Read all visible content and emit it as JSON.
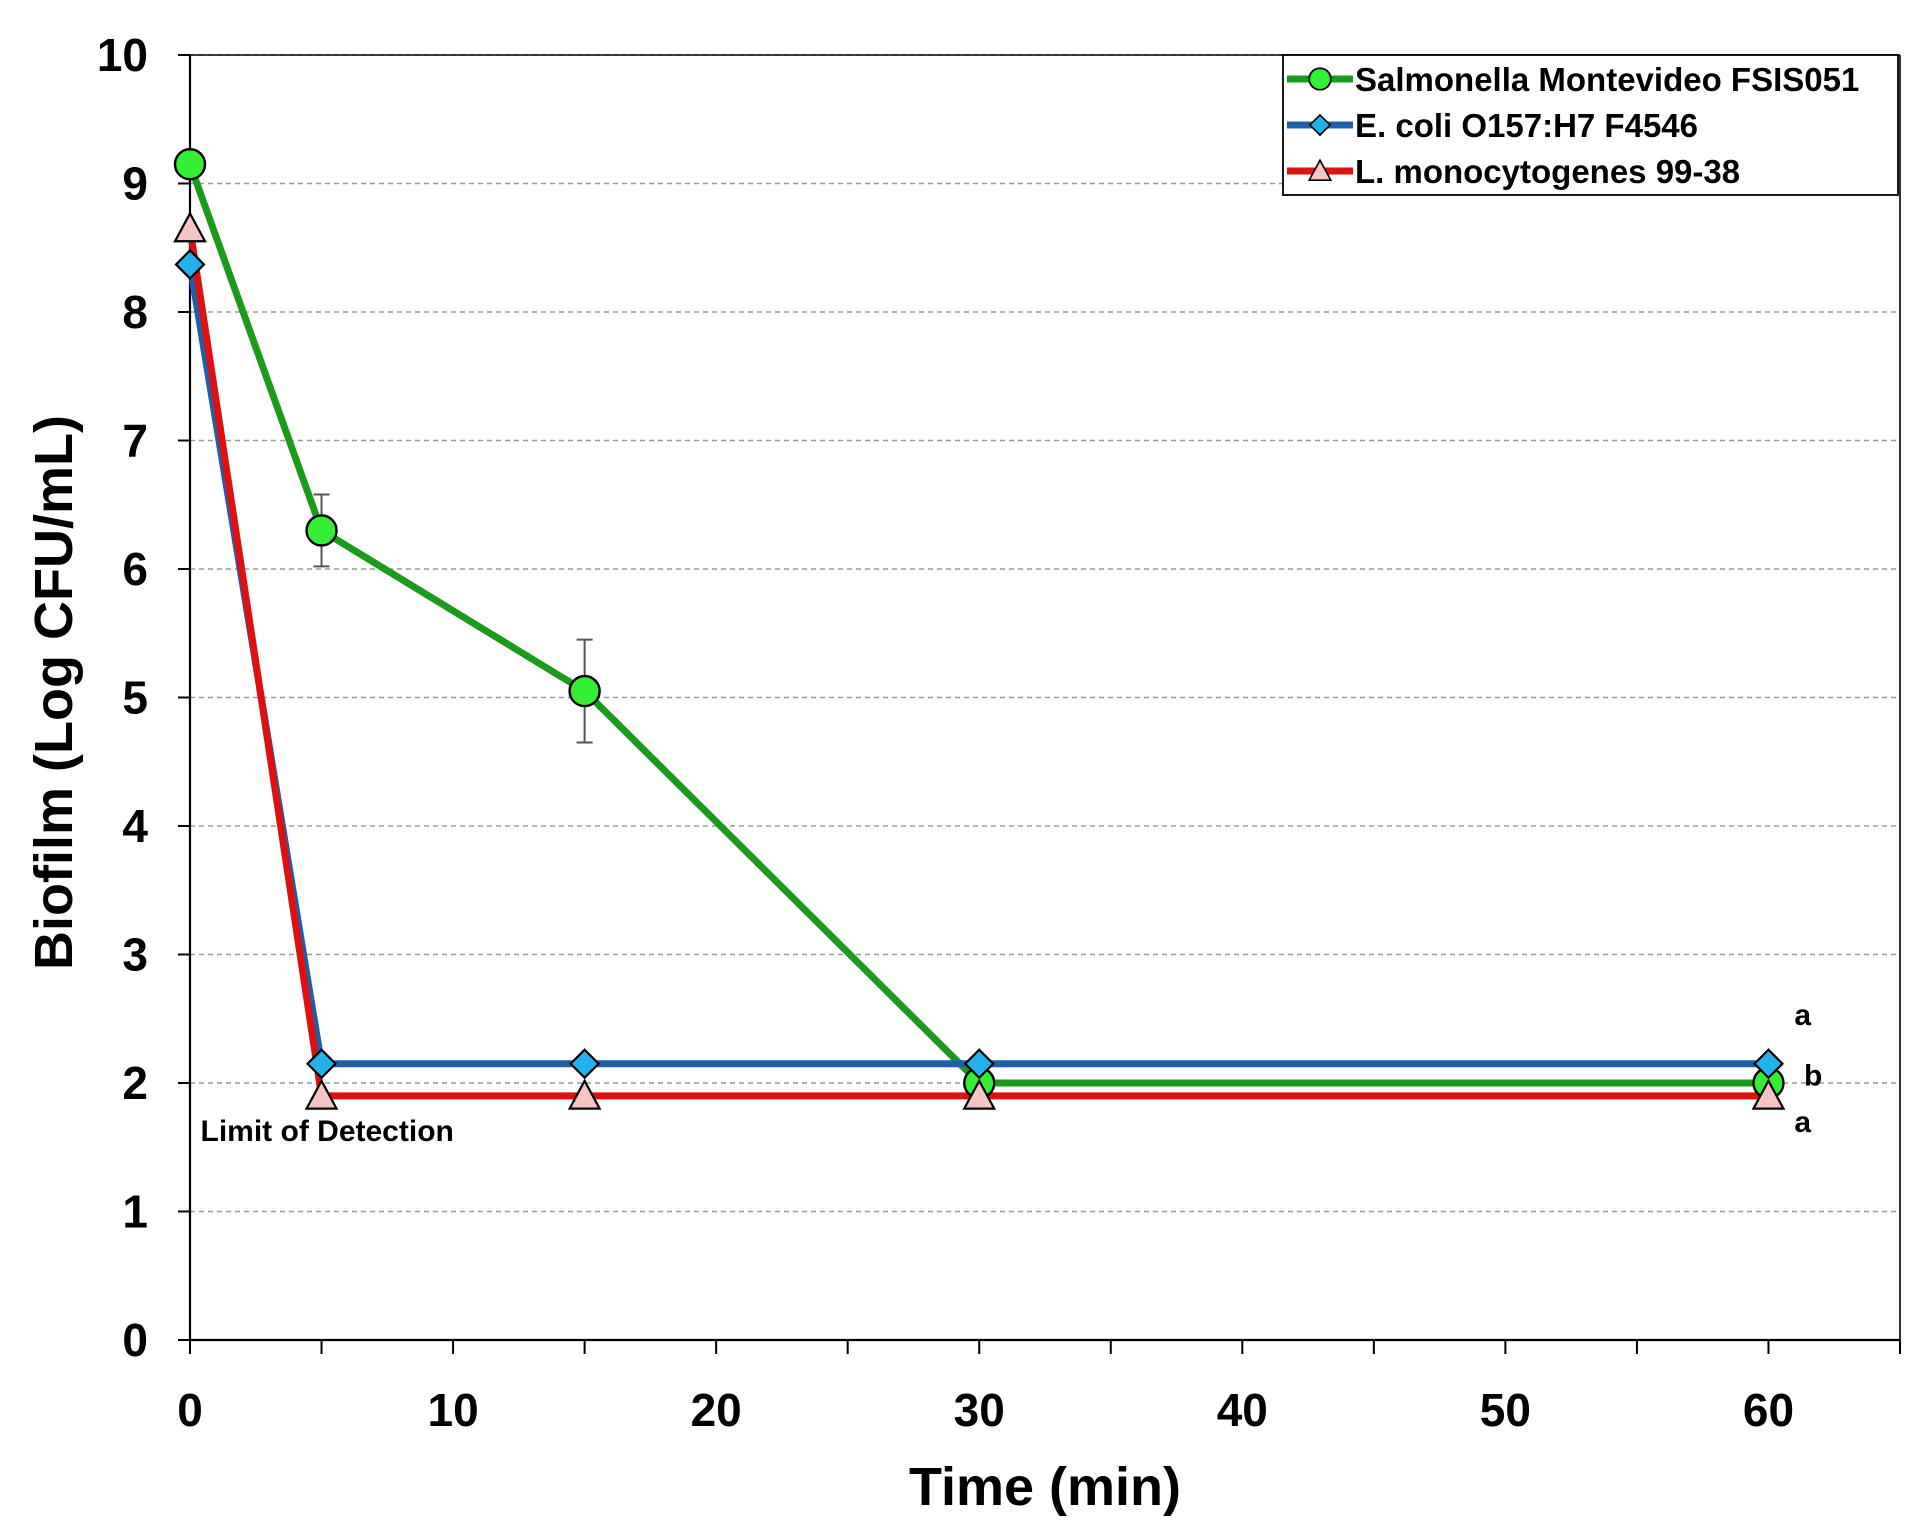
{
  "chart_data": {
    "type": "line",
    "title": "",
    "xlabel": "Time (min)",
    "ylabel": "Biofilm (Log CFU/mL)",
    "xlim": [
      0,
      65
    ],
    "ylim": [
      0,
      10
    ],
    "x_ticks": [
      0,
      10,
      20,
      30,
      40,
      50,
      60
    ],
    "x_minor_ticks": [
      5,
      15,
      25,
      35,
      45,
      55,
      65
    ],
    "y_ticks": [
      0,
      1,
      2,
      3,
      4,
      5,
      6,
      7,
      8,
      9,
      10
    ],
    "grid": "horizontal dashed",
    "legend_position": "top-right",
    "series": [
      {
        "name": "Salmonella Montevideo FSIS051",
        "color": "#1a9c1a",
        "marker": "circle",
        "marker_fill": "#33ee33",
        "x": [
          0,
          5,
          15,
          30,
          60
        ],
        "y": [
          9.15,
          6.3,
          5.05,
          2.0,
          2.0
        ],
        "error": [
          0,
          0.28,
          0.4,
          0,
          0
        ]
      },
      {
        "name": "E. coli O157:H7 F4546",
        "color": "#1f5fa8",
        "marker": "diamond",
        "marker_fill": "#22b2ee",
        "x": [
          0,
          5,
          15,
          30,
          60
        ],
        "y": [
          8.37,
          2.15,
          2.15,
          2.15,
          2.15
        ],
        "error": [
          0,
          0,
          0,
          0,
          0
        ]
      },
      {
        "name": "L. monocytogenes 99-38",
        "color": "#dd1111",
        "marker": "triangle",
        "marker_fill": "#f6c4c4",
        "x": [
          0,
          5,
          15,
          30,
          60
        ],
        "y": [
          8.65,
          1.9,
          1.9,
          1.9,
          1.9
        ],
        "error": [
          0,
          0,
          0,
          0,
          0
        ]
      }
    ],
    "annotations": [
      {
        "text": "Limit of Detection",
        "x": 0.4,
        "y": 1.55
      }
    ],
    "significance_letters": [
      {
        "text": "a",
        "x": 61.3,
        "y": 2.45
      },
      {
        "text": "b",
        "x": 61.7,
        "y": 1.98
      },
      {
        "text": "a",
        "x": 61.3,
        "y": 1.62
      }
    ]
  }
}
